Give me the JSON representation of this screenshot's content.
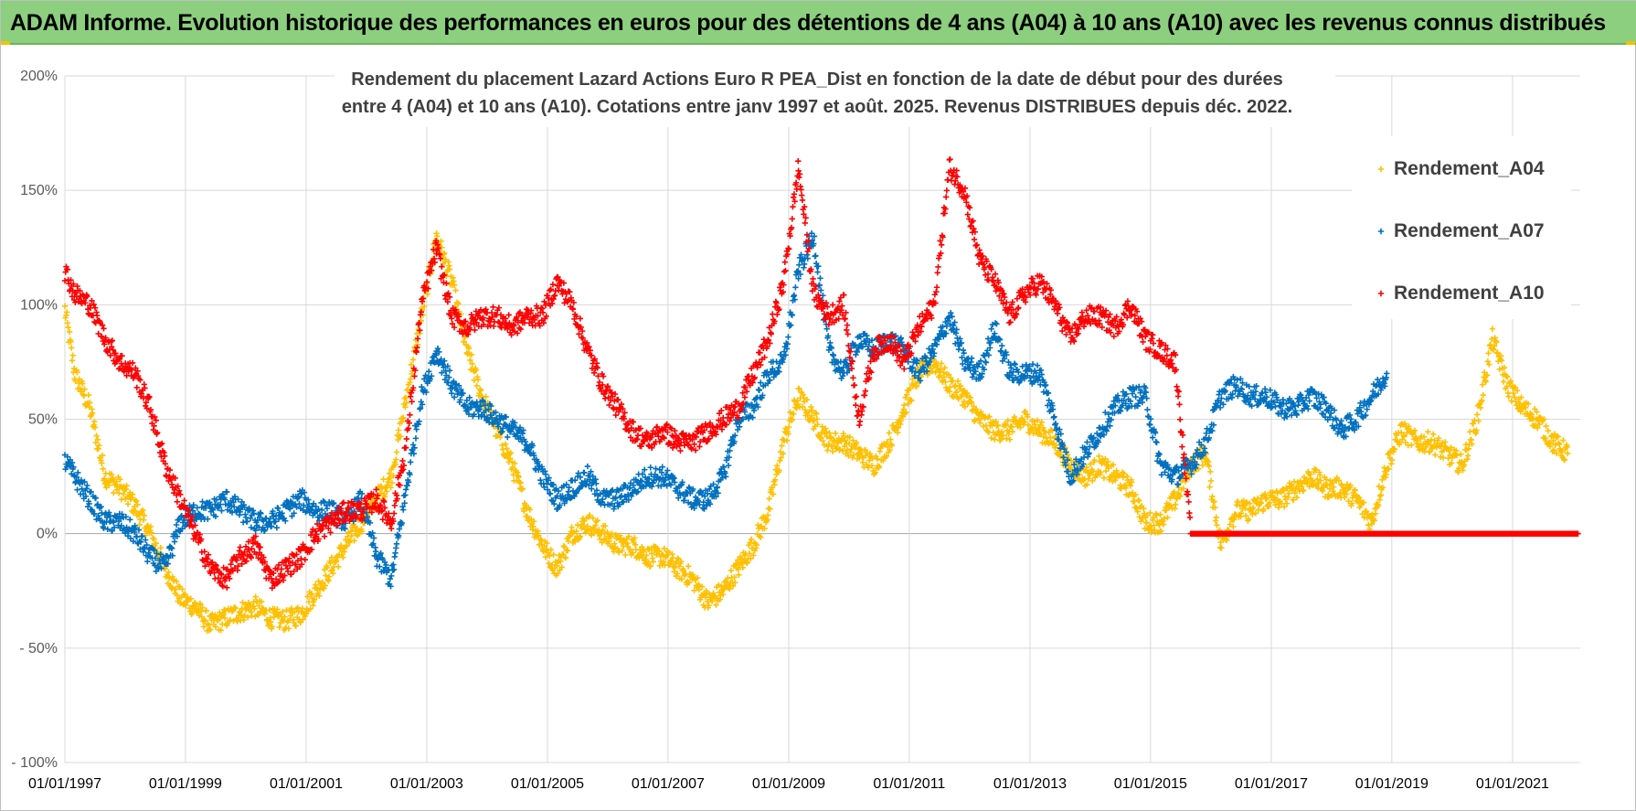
{
  "header": {
    "banner_title": "ADAM Informe. Evolution historique des performances en euros pour des détentions de 4 ans (A04) à 10 ans (A10) avec les revenus connus distribués"
  },
  "colors": {
    "banner_bg": "#8ccf7e",
    "A04": "#ffc000",
    "A07": "#0070c0",
    "A10": "#ff0000",
    "grid": "#d9d9d9",
    "zero_line": "#a6a6a6"
  },
  "chart_data": {
    "type": "scatter",
    "title_lines": [
      "Rendement du placement Lazard Actions Euro R PEA_Dist en fonction de la date de début pour des durées",
      "entre 4 (A04) et 10 ans (A10). Cotations entre janv 1997 et août. 2025. Revenus DISTRIBUES depuis déc. 2022."
    ],
    "xlabel": "",
    "ylabel": "",
    "x_axis_type": "date",
    "xlim": [
      "1997-01-01",
      "2022-02-15"
    ],
    "ylim": [
      -100,
      200
    ],
    "y_unit": "%",
    "x_tick_labels": [
      "01/01/1997",
      "01/01/1999",
      "01/01/2001",
      "01/01/2003",
      "01/01/2005",
      "01/01/2007",
      "01/01/2009",
      "01/01/2011",
      "01/01/2013",
      "01/01/2015",
      "01/01/2017",
      "01/01/2019",
      "01/01/2021"
    ],
    "y_tick_labels": [
      "- 100%",
      "- 50%",
      "0%",
      "50%",
      "100%",
      "150%",
      "200%"
    ],
    "y_tick_values": [
      -100,
      -50,
      0,
      50,
      100,
      150,
      200
    ],
    "grid": true,
    "legend_position": "right",
    "marker": "plus",
    "series": [
      {
        "name": "Rendement_A04",
        "color": "#ffc000",
        "points": [
          [
            "1997-01-01",
            98
          ],
          [
            "1997-03-01",
            70
          ],
          [
            "1997-06-01",
            55
          ],
          [
            "1997-09-01",
            25
          ],
          [
            "1997-12-01",
            20
          ],
          [
            "1998-03-01",
            12
          ],
          [
            "1998-06-01",
            0
          ],
          [
            "1998-09-01",
            -15
          ],
          [
            "1998-12-01",
            -28
          ],
          [
            "1999-03-01",
            -32
          ],
          [
            "1999-06-01",
            -40
          ],
          [
            "1999-09-01",
            -37
          ],
          [
            "1999-12-01",
            -34
          ],
          [
            "2000-03-01",
            -32
          ],
          [
            "2000-06-01",
            -37
          ],
          [
            "2000-09-01",
            -38
          ],
          [
            "2000-12-01",
            -35
          ],
          [
            "2001-03-01",
            -25
          ],
          [
            "2001-06-01",
            -15
          ],
          [
            "2001-09-01",
            -5
          ],
          [
            "2001-12-01",
            5
          ],
          [
            "2002-03-01",
            15
          ],
          [
            "2002-06-01",
            25
          ],
          [
            "2002-09-01",
            60
          ],
          [
            "2002-12-01",
            95
          ],
          [
            "2003-03-01",
            130
          ],
          [
            "2003-06-01",
            110
          ],
          [
            "2003-09-01",
            80
          ],
          [
            "2003-12-01",
            60
          ],
          [
            "2004-03-01",
            45
          ],
          [
            "2004-06-01",
            30
          ],
          [
            "2004-09-01",
            10
          ],
          [
            "2004-12-01",
            -5
          ],
          [
            "2005-03-01",
            -15
          ],
          [
            "2005-06-01",
            0
          ],
          [
            "2005-09-01",
            5
          ],
          [
            "2005-12-01",
            0
          ],
          [
            "2006-03-01",
            -5
          ],
          [
            "2006-06-01",
            -5
          ],
          [
            "2006-09-01",
            -10
          ],
          [
            "2006-12-01",
            -10
          ],
          [
            "2007-03-01",
            -15
          ],
          [
            "2007-06-01",
            -20
          ],
          [
            "2007-09-01",
            -30
          ],
          [
            "2007-12-01",
            -25
          ],
          [
            "2008-03-01",
            -15
          ],
          [
            "2008-06-01",
            -5
          ],
          [
            "2008-09-01",
            10
          ],
          [
            "2008-12-01",
            40
          ],
          [
            "2009-03-01",
            60
          ],
          [
            "2009-06-01",
            50
          ],
          [
            "2009-09-01",
            40
          ],
          [
            "2009-12-01",
            40
          ],
          [
            "2010-03-01",
            35
          ],
          [
            "2010-06-01",
            30
          ],
          [
            "2010-09-01",
            40
          ],
          [
            "2010-12-01",
            55
          ],
          [
            "2011-03-01",
            70
          ],
          [
            "2011-06-01",
            75
          ],
          [
            "2011-09-01",
            65
          ],
          [
            "2011-12-01",
            60
          ],
          [
            "2012-03-01",
            50
          ],
          [
            "2012-06-01",
            45
          ],
          [
            "2012-09-01",
            45
          ],
          [
            "2012-12-01",
            50
          ],
          [
            "2013-03-01",
            45
          ],
          [
            "2013-06-01",
            40
          ],
          [
            "2013-09-01",
            30
          ],
          [
            "2013-12-01",
            25
          ],
          [
            "2014-03-01",
            30
          ],
          [
            "2014-06-01",
            25
          ],
          [
            "2014-09-01",
            20
          ],
          [
            "2014-12-01",
            5
          ],
          [
            "2015-03-01",
            5
          ],
          [
            "2015-06-01",
            15
          ],
          [
            "2015-09-01",
            30
          ],
          [
            "2015-12-01",
            35
          ],
          [
            "2016-03-01",
            -5
          ],
          [
            "2016-06-01",
            10
          ],
          [
            "2016-09-01",
            10
          ],
          [
            "2016-12-01",
            15
          ],
          [
            "2017-03-01",
            15
          ],
          [
            "2017-06-01",
            20
          ],
          [
            "2017-09-01",
            25
          ],
          [
            "2017-12-01",
            20
          ],
          [
            "2018-03-01",
            20
          ],
          [
            "2018-06-01",
            15
          ],
          [
            "2018-09-01",
            5
          ],
          [
            "2018-12-01",
            30
          ],
          [
            "2019-03-01",
            45
          ],
          [
            "2019-06-01",
            40
          ],
          [
            "2019-09-01",
            40
          ],
          [
            "2019-12-01",
            35
          ],
          [
            "2020-03-01",
            30
          ],
          [
            "2020-06-01",
            50
          ],
          [
            "2020-09-01",
            85
          ],
          [
            "2020-12-01",
            65
          ],
          [
            "2021-03-01",
            55
          ],
          [
            "2021-06-01",
            50
          ],
          [
            "2021-09-01",
            40
          ],
          [
            "2021-12-01",
            35
          ]
        ]
      },
      {
        "name": "Rendement_A07",
        "color": "#0070c0",
        "points": [
          [
            "1997-01-01",
            32
          ],
          [
            "1997-03-01",
            25
          ],
          [
            "1997-06-01",
            15
          ],
          [
            "1997-09-01",
            5
          ],
          [
            "1997-12-01",
            5
          ],
          [
            "1998-03-01",
            0
          ],
          [
            "1998-06-01",
            -10
          ],
          [
            "1998-09-01",
            -15
          ],
          [
            "1998-12-01",
            5
          ],
          [
            "1999-03-01",
            10
          ],
          [
            "1999-06-01",
            10
          ],
          [
            "1999-09-01",
            15
          ],
          [
            "1999-12-01",
            10
          ],
          [
            "2000-03-01",
            5
          ],
          [
            "2000-06-01",
            5
          ],
          [
            "2000-09-01",
            10
          ],
          [
            "2000-12-01",
            15
          ],
          [
            "2001-03-01",
            10
          ],
          [
            "2001-06-01",
            10
          ],
          [
            "2001-09-01",
            5
          ],
          [
            "2001-12-01",
            15
          ],
          [
            "2002-03-01",
            -10
          ],
          [
            "2002-06-01",
            -20
          ],
          [
            "2002-09-01",
            20
          ],
          [
            "2002-12-01",
            60
          ],
          [
            "2003-03-01",
            80
          ],
          [
            "2003-06-01",
            65
          ],
          [
            "2003-09-01",
            55
          ],
          [
            "2003-12-01",
            55
          ],
          [
            "2004-03-01",
            50
          ],
          [
            "2004-06-01",
            45
          ],
          [
            "2004-09-01",
            40
          ],
          [
            "2004-12-01",
            25
          ],
          [
            "2005-03-01",
            15
          ],
          [
            "2005-06-01",
            20
          ],
          [
            "2005-09-01",
            25
          ],
          [
            "2005-12-01",
            15
          ],
          [
            "2006-03-01",
            15
          ],
          [
            "2006-06-01",
            20
          ],
          [
            "2006-09-01",
            25
          ],
          [
            "2006-12-01",
            25
          ],
          [
            "2007-03-01",
            20
          ],
          [
            "2007-06-01",
            15
          ],
          [
            "2007-09-01",
            15
          ],
          [
            "2007-12-01",
            25
          ],
          [
            "2008-03-01",
            50
          ],
          [
            "2008-06-01",
            55
          ],
          [
            "2008-09-01",
            70
          ],
          [
            "2008-12-01",
            75
          ],
          [
            "2009-03-01",
            115
          ],
          [
            "2009-06-01",
            130
          ],
          [
            "2009-09-01",
            80
          ],
          [
            "2009-12-01",
            70
          ],
          [
            "2010-03-01",
            85
          ],
          [
            "2010-06-01",
            80
          ],
          [
            "2010-09-01",
            85
          ],
          [
            "2010-12-01",
            80
          ],
          [
            "2011-03-01",
            70
          ],
          [
            "2011-06-01",
            80
          ],
          [
            "2011-09-01",
            95
          ],
          [
            "2011-12-01",
            75
          ],
          [
            "2012-03-01",
            70
          ],
          [
            "2012-06-01",
            90
          ],
          [
            "2012-09-01",
            70
          ],
          [
            "2012-12-01",
            70
          ],
          [
            "2013-03-01",
            70
          ],
          [
            "2013-06-01",
            50
          ],
          [
            "2013-09-01",
            25
          ],
          [
            "2013-12-01",
            35
          ],
          [
            "2014-03-01",
            45
          ],
          [
            "2014-06-01",
            55
          ],
          [
            "2014-09-01",
            60
          ],
          [
            "2014-12-01",
            60
          ],
          [
            "2015-03-01",
            30
          ],
          [
            "2015-06-01",
            25
          ],
          [
            "2015-09-01",
            30
          ],
          [
            "2015-12-01",
            40
          ],
          [
            "2016-03-01",
            60
          ],
          [
            "2016-06-01",
            65
          ],
          [
            "2016-09-01",
            60
          ],
          [
            "2016-12-01",
            60
          ],
          [
            "2017-03-01",
            55
          ],
          [
            "2017-06-01",
            55
          ],
          [
            "2017-09-01",
            60
          ],
          [
            "2017-12-01",
            55
          ],
          [
            "2018-03-01",
            45
          ],
          [
            "2018-06-01",
            50
          ],
          [
            "2018-09-01",
            60
          ],
          [
            "2018-12-01",
            70
          ]
        ]
      },
      {
        "name": "Rendement_A10",
        "color": "#ff0000",
        "points": [
          [
            "1997-01-01",
            115
          ],
          [
            "1997-03-01",
            105
          ],
          [
            "1997-06-01",
            100
          ],
          [
            "1997-09-01",
            85
          ],
          [
            "1997-12-01",
            75
          ],
          [
            "1998-03-01",
            70
          ],
          [
            "1998-06-01",
            55
          ],
          [
            "1998-09-01",
            30
          ],
          [
            "1998-12-01",
            15
          ],
          [
            "1999-03-01",
            0
          ],
          [
            "1999-06-01",
            -15
          ],
          [
            "1999-09-01",
            -20
          ],
          [
            "1999-12-01",
            -10
          ],
          [
            "2000-03-01",
            -5
          ],
          [
            "2000-06-01",
            -20
          ],
          [
            "2000-09-01",
            -15
          ],
          [
            "2000-12-01",
            -10
          ],
          [
            "2001-03-01",
            0
          ],
          [
            "2001-06-01",
            5
          ],
          [
            "2001-09-01",
            10
          ],
          [
            "2001-12-01",
            10
          ],
          [
            "2002-03-01",
            15
          ],
          [
            "2002-06-01",
            5
          ],
          [
            "2002-09-01",
            40
          ],
          [
            "2002-12-01",
            100
          ],
          [
            "2003-03-01",
            125
          ],
          [
            "2003-06-01",
            95
          ],
          [
            "2003-09-01",
            90
          ],
          [
            "2003-12-01",
            95
          ],
          [
            "2004-03-01",
            95
          ],
          [
            "2004-06-01",
            90
          ],
          [
            "2004-09-01",
            95
          ],
          [
            "2004-12-01",
            95
          ],
          [
            "2005-03-01",
            110
          ],
          [
            "2005-06-01",
            100
          ],
          [
            "2005-09-01",
            80
          ],
          [
            "2005-12-01",
            65
          ],
          [
            "2006-03-01",
            55
          ],
          [
            "2006-06-01",
            45
          ],
          [
            "2006-09-01",
            40
          ],
          [
            "2006-12-01",
            45
          ],
          [
            "2007-03-01",
            40
          ],
          [
            "2007-06-01",
            40
          ],
          [
            "2007-09-01",
            45
          ],
          [
            "2007-12-01",
            50
          ],
          [
            "2008-03-01",
            55
          ],
          [
            "2008-06-01",
            70
          ],
          [
            "2008-09-01",
            85
          ],
          [
            "2008-12-01",
            110
          ],
          [
            "2009-03-01",
            160
          ],
          [
            "2009-06-01",
            105
          ],
          [
            "2009-09-01",
            95
          ],
          [
            "2009-12-01",
            100
          ],
          [
            "2010-03-01",
            50
          ],
          [
            "2010-06-01",
            80
          ],
          [
            "2010-09-01",
            85
          ],
          [
            "2010-12-01",
            75
          ],
          [
            "2011-03-01",
            90
          ],
          [
            "2011-06-01",
            100
          ],
          [
            "2011-09-01",
            160
          ],
          [
            "2011-12-01",
            150
          ],
          [
            "2012-03-01",
            120
          ],
          [
            "2012-06-01",
            110
          ],
          [
            "2012-09-01",
            95
          ],
          [
            "2012-12-01",
            105
          ],
          [
            "2013-03-01",
            110
          ],
          [
            "2013-06-01",
            100
          ],
          [
            "2013-09-01",
            85
          ],
          [
            "2013-12-01",
            95
          ],
          [
            "2014-03-01",
            95
          ],
          [
            "2014-06-01",
            90
          ],
          [
            "2014-09-01",
            100
          ],
          [
            "2014-12-01",
            85
          ],
          [
            "2015-03-01",
            80
          ],
          [
            "2015-06-01",
            75
          ],
          [
            "2015-09-01",
            0
          ],
          [
            "2016-03-01",
            0
          ],
          [
            "2017-03-01",
            0
          ],
          [
            "2018-03-01",
            0
          ],
          [
            "2019-03-01",
            0
          ],
          [
            "2020-03-01",
            0
          ],
          [
            "2021-03-01",
            0
          ],
          [
            "2022-02-01",
            0
          ]
        ]
      }
    ]
  }
}
